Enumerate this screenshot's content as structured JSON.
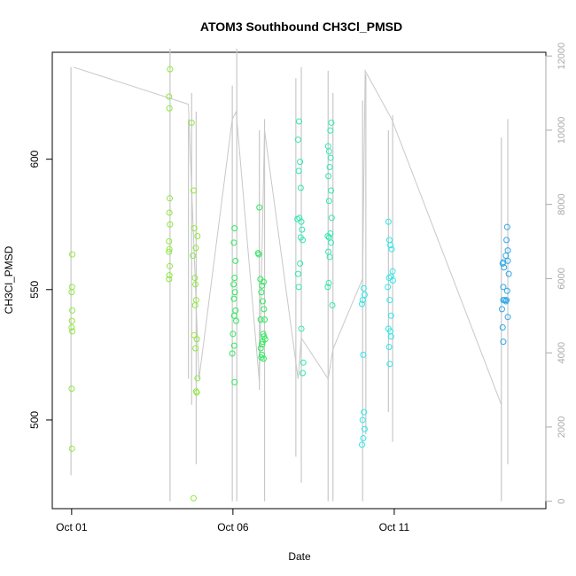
{
  "chart_data": {
    "type": "scatter",
    "title": "ATOM3 Southbound CH3Cl_PMSD",
    "xlabel": "Date",
    "ylabel": "CH3Cl_PMSD",
    "x_ticks": [
      "Oct 01",
      "Oct 06",
      "Oct 11"
    ],
    "x_tick_days": [
      1,
      6,
      11
    ],
    "xlim_days": [
      0.4,
      15.7
    ],
    "ylim": [
      466,
      641
    ],
    "y_ticks": [
      500,
      550,
      600
    ],
    "y2lim": [
      -200,
      12100
    ],
    "y2_ticks": [
      0,
      2000,
      4000,
      6000,
      8000,
      10000,
      12000
    ],
    "grid": false,
    "series": [
      {
        "values_day_y": [
          [
            1.02,
            563.5
          ],
          [
            1.01,
            551
          ],
          [
            1.0,
            549
          ],
          [
            1.02,
            542
          ],
          [
            1.01,
            538
          ],
          [
            1.0,
            535.5
          ],
          [
            1.02,
            534
          ],
          [
            1.0,
            512
          ],
          [
            1.01,
            489
          ],
          [
            4.05,
            634.5
          ],
          [
            4.02,
            624
          ],
          [
            4.03,
            619.5
          ],
          [
            4.04,
            585
          ],
          [
            4.03,
            579.5
          ],
          [
            4.05,
            575
          ],
          [
            4.02,
            568.5
          ],
          [
            4.03,
            565.5
          ],
          [
            4.02,
            564.5
          ],
          [
            4.04,
            559
          ],
          [
            4.03,
            555.5
          ],
          [
            4.02,
            554
          ],
          [
            4.72,
            614
          ],
          [
            4.78,
            588
          ],
          [
            4.8,
            573.5
          ],
          [
            4.76,
            563
          ],
          [
            4.9,
            570.5
          ],
          [
            4.85,
            566
          ],
          [
            4.82,
            554.5
          ],
          [
            4.84,
            552
          ],
          [
            4.86,
            546
          ],
          [
            4.83,
            544
          ],
          [
            4.8,
            532.5
          ],
          [
            4.88,
            531
          ],
          [
            4.84,
            527.5
          ],
          [
            4.9,
            516
          ],
          [
            4.86,
            511
          ],
          [
            4.88,
            510.5
          ],
          [
            4.78,
            470
          ]
        ],
        "color": "#8fe83e"
      },
      {
        "values_day_y": [
          [
            6.05,
            573.5
          ],
          [
            6.03,
            568
          ],
          [
            6.08,
            561
          ],
          [
            6.05,
            554.5
          ],
          [
            6.02,
            552
          ],
          [
            6.06,
            549
          ],
          [
            6.03,
            546.5
          ],
          [
            6.08,
            542
          ],
          [
            6.04,
            540
          ],
          [
            6.1,
            538
          ],
          [
            6.0,
            533
          ],
          [
            6.04,
            528.5
          ],
          [
            5.98,
            525.5
          ],
          [
            6.05,
            514.5
          ],
          [
            6.82,
            581.5
          ],
          [
            6.78,
            564
          ],
          [
            6.8,
            563.5
          ],
          [
            6.85,
            554
          ],
          [
            6.95,
            553
          ],
          [
            6.9,
            551.5
          ],
          [
            6.88,
            549
          ],
          [
            6.92,
            545.5
          ],
          [
            6.96,
            542.5
          ],
          [
            6.86,
            538.5
          ],
          [
            6.98,
            538.5
          ],
          [
            6.94,
            533
          ],
          [
            6.96,
            532
          ],
          [
            6.92,
            530
          ],
          [
            7.0,
            531
          ],
          [
            6.9,
            529
          ],
          [
            6.86,
            527.5
          ],
          [
            6.9,
            525
          ],
          [
            6.88,
            524
          ],
          [
            6.95,
            523.5
          ]
        ],
        "color": "#2ee85c"
      },
      {
        "values_day_y": [
          [
            8.05,
            614.5
          ],
          [
            8.02,
            607.5
          ],
          [
            8.08,
            599
          ],
          [
            8.04,
            595.5
          ],
          [
            8.1,
            589
          ],
          [
            8.06,
            577.5
          ],
          [
            8.0,
            577
          ],
          [
            8.12,
            576
          ],
          [
            8.14,
            573
          ],
          [
            8.1,
            570
          ],
          [
            8.16,
            569
          ],
          [
            8.08,
            560
          ],
          [
            8.02,
            556
          ],
          [
            8.04,
            551
          ],
          [
            8.12,
            535
          ],
          [
            8.18,
            522
          ],
          [
            8.16,
            518
          ],
          [
            8.95,
            605
          ],
          [
            9.02,
            611
          ],
          [
            9.05,
            614
          ],
          [
            8.98,
            603
          ],
          [
            9.03,
            600.5
          ],
          [
            9.0,
            597
          ],
          [
            8.96,
            593.5
          ],
          [
            9.04,
            588
          ],
          [
            8.98,
            584
          ],
          [
            9.06,
            577.5
          ],
          [
            9.02,
            571.5
          ],
          [
            8.94,
            570.5
          ],
          [
            8.98,
            570
          ],
          [
            9.04,
            568
          ],
          [
            8.96,
            564.5
          ],
          [
            9.0,
            562.5
          ],
          [
            8.97,
            552.5
          ],
          [
            8.94,
            551
          ],
          [
            9.08,
            544
          ]
        ],
        "color": "#2ee8b0"
      },
      {
        "values_day_y": [
          [
            10.05,
            550.5
          ],
          [
            10.08,
            548
          ],
          [
            10.02,
            546
          ],
          [
            10.0,
            544.5
          ],
          [
            10.04,
            525
          ],
          [
            10.06,
            503
          ],
          [
            10.02,
            500
          ],
          [
            10.08,
            496.5
          ],
          [
            10.04,
            493
          ],
          [
            10.0,
            490.5
          ],
          [
            10.82,
            576
          ],
          [
            10.85,
            569
          ],
          [
            10.88,
            567
          ],
          [
            10.92,
            565.5
          ],
          [
            10.95,
            557
          ],
          [
            10.9,
            555
          ],
          [
            10.84,
            554.5
          ],
          [
            10.96,
            553.5
          ],
          [
            10.8,
            551
          ],
          [
            10.86,
            546
          ],
          [
            10.9,
            540
          ],
          [
            10.82,
            535
          ],
          [
            10.88,
            534
          ],
          [
            10.84,
            528
          ],
          [
            10.86,
            521.5
          ],
          [
            10.9,
            532
          ]
        ],
        "color": "#2ee8e8"
      },
      {
        "values_day_y": [
          [
            14.5,
            574
          ],
          [
            14.48,
            569
          ],
          [
            14.52,
            565
          ],
          [
            14.46,
            563
          ],
          [
            14.38,
            560.5
          ],
          [
            14.36,
            560
          ],
          [
            14.4,
            558.5
          ],
          [
            14.52,
            561
          ],
          [
            14.55,
            556
          ],
          [
            14.38,
            551
          ],
          [
            14.5,
            549.5
          ],
          [
            14.48,
            546
          ],
          [
            14.42,
            546
          ],
          [
            14.46,
            545.5
          ],
          [
            14.38,
            546
          ],
          [
            14.34,
            542.5
          ],
          [
            14.52,
            539.5
          ],
          [
            14.36,
            535.5
          ],
          [
            14.38,
            530
          ]
        ],
        "color": "#30a7e6"
      }
    ],
    "secondary_series": {
      "note_axis": "right",
      "color": "#c8c8c8",
      "profile_days_top_bottom": [
        [
          0.98,
          11700,
          700
        ],
        [
          4.05,
          12200,
          0
        ],
        [
          4.62,
          10300,
          3300
        ],
        [
          4.72,
          11000,
          2600
        ],
        [
          4.86,
          10500,
          1000
        ],
        [
          5.98,
          11200,
          0
        ],
        [
          6.12,
          12200,
          0
        ],
        [
          6.82,
          10000,
          3000
        ],
        [
          6.98,
          10300,
          0
        ],
        [
          7.95,
          11400,
          1200
        ],
        [
          8.12,
          11700,
          500
        ],
        [
          8.95,
          11600,
          0
        ],
        [
          9.1,
          11000,
          0
        ],
        [
          10.02,
          10800,
          0
        ],
        [
          10.12,
          11500,
          1800
        ],
        [
          10.82,
          10000,
          2400
        ],
        [
          10.95,
          10400,
          1600
        ],
        [
          14.32,
          9800,
          0
        ],
        [
          14.52,
          10300,
          1000
        ]
      ],
      "transit_days_values": [
        [
          1.05,
          11700
        ],
        [
          4.62,
          10700
        ],
        [
          4.95,
          3300
        ],
        [
          5.98,
          10300
        ],
        [
          6.1,
          10500
        ],
        [
          6.82,
          3200
        ],
        [
          6.98,
          10000
        ],
        [
          8.02,
          3300
        ],
        [
          8.12,
          4400
        ],
        [
          8.95,
          3300
        ],
        [
          9.1,
          4100
        ],
        [
          10.02,
          6000
        ],
        [
          10.1,
          11600
        ],
        [
          10.92,
          10300
        ],
        [
          14.32,
          2600
        ]
      ]
    }
  }
}
